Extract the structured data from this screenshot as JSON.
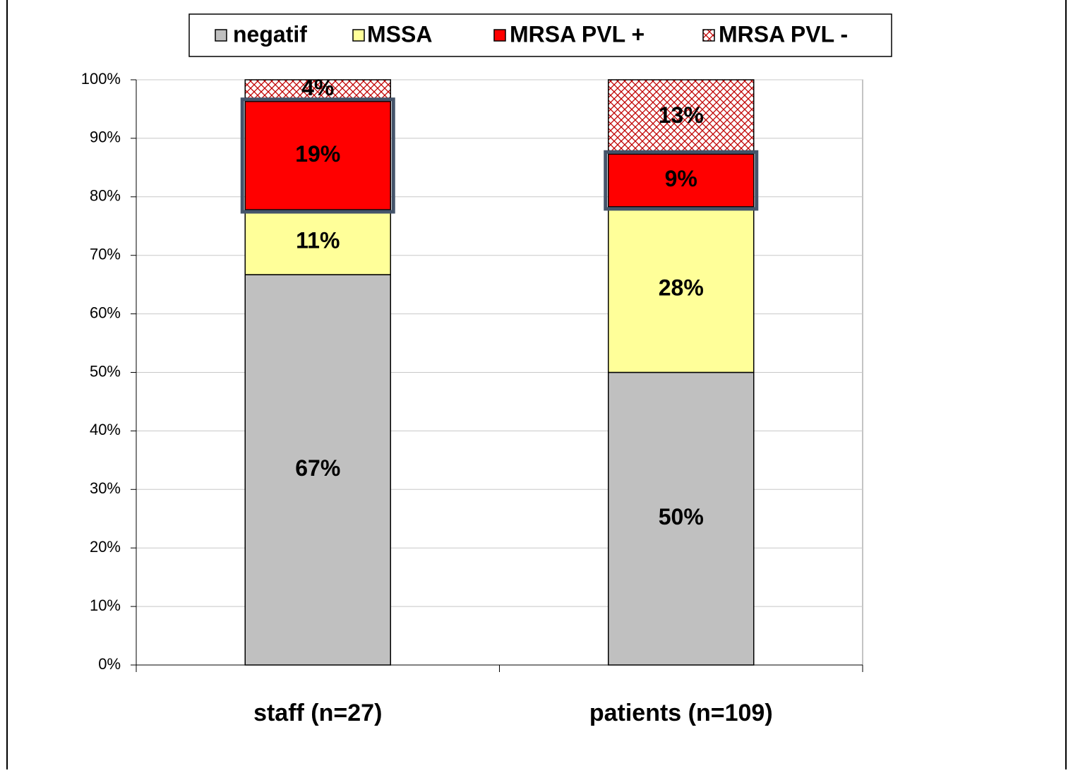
{
  "chart_data": {
    "type": "stacked_bar",
    "categories": [
      "staff (n=27)",
      "patients (n=109)"
    ],
    "series": [
      {
        "name": "negatif",
        "color": "#c0c0c0",
        "values": [
          66.7,
          50
        ],
        "value_labels": [
          "67%",
          "50%"
        ]
      },
      {
        "name": "MSSA",
        "color": "#ffff99",
        "values": [
          11.1,
          28.3
        ],
        "value_labels": [
          "11%",
          "28%"
        ]
      },
      {
        "name": "MRSA PVL +",
        "color": "#ff0000",
        "values": [
          18.5,
          9
        ],
        "value_labels": [
          "19%",
          "9%"
        ]
      },
      {
        "name": "MRSA PVL -",
        "color": "#c00000",
        "pattern": "crosshatch",
        "values": [
          3.7,
          12.7
        ],
        "value_labels": [
          "4%",
          "13%"
        ]
      }
    ],
    "ylim": [
      0,
      100
    ],
    "yticks": [
      {
        "value": 0,
        "label": "0%"
      },
      {
        "value": 10,
        "label": "10%"
      },
      {
        "value": 20,
        "label": "20%"
      },
      {
        "value": 30,
        "label": "30%"
      },
      {
        "value": 40,
        "label": "40%"
      },
      {
        "value": 50,
        "label": "50%"
      },
      {
        "value": 60,
        "label": "60%"
      },
      {
        "value": 70,
        "label": "70%"
      },
      {
        "value": 80,
        "label": "80%"
      },
      {
        "value": 90,
        "label": "90%"
      },
      {
        "value": 100,
        "label": "100%"
      }
    ],
    "grid": true,
    "legend": "top"
  }
}
